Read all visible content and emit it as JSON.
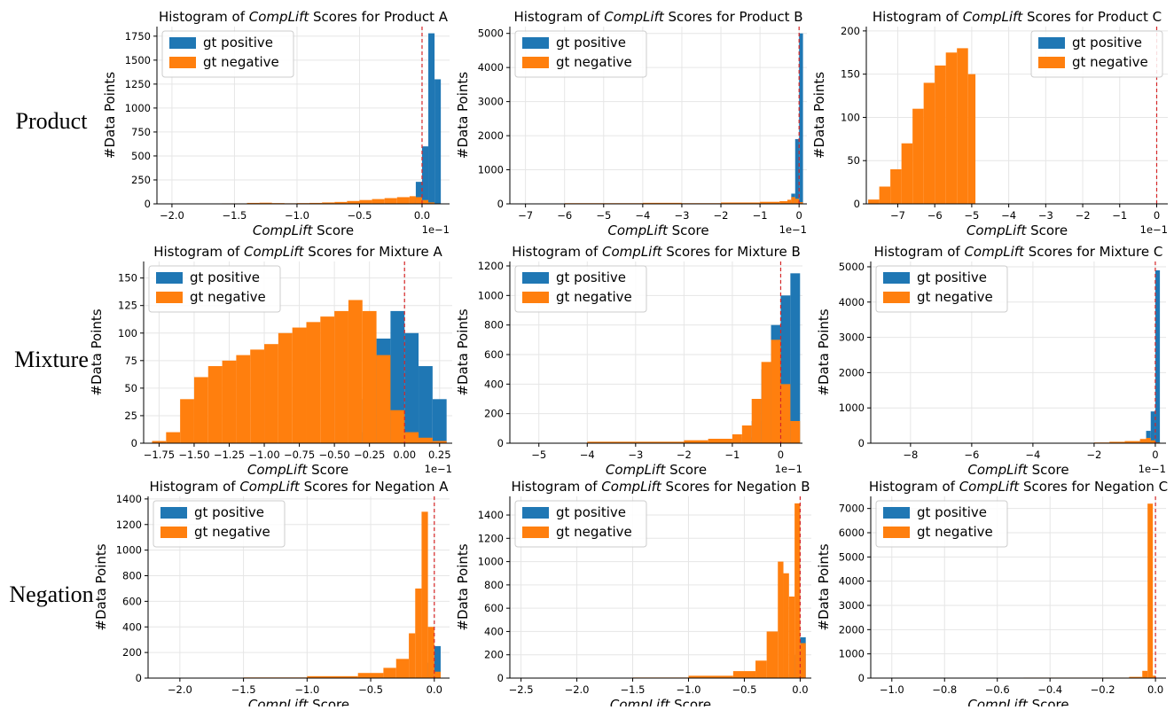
{
  "colors": {
    "gt_positive": "#1f77b4",
    "gt_negative": "#ff7f0e",
    "threshold": "#d62728"
  },
  "row_labels": [
    "Product",
    "Mixture",
    "Negation"
  ],
  "chart_data": [
    {
      "id": "pa",
      "type": "histogram",
      "title_prefix": "Histogram of ",
      "title_italic": "CompLift",
      "title_suffix": " Scores for Product A",
      "xlabel_italic": "CompLift",
      "xlabel_rest": " Score",
      "ylabel": "#Data Points",
      "sci_label": "1e−1",
      "xlim": [
        -2.12,
        0.22
      ],
      "ylim": [
        0,
        1850
      ],
      "x_ticks": [
        {
          "v": -2.0,
          "t": "−2.0"
        },
        {
          "v": -1.5,
          "t": "−1.5"
        },
        {
          "v": -1.0,
          "t": "−1.0"
        },
        {
          "v": -0.5,
          "t": "−0.5"
        },
        {
          "v": 0,
          "t": "0.0"
        }
      ],
      "y_ticks": [
        {
          "v": 0,
          "t": "0"
        },
        {
          "v": 250,
          "t": "250"
        },
        {
          "v": 500,
          "t": "500"
        },
        {
          "v": 750,
          "t": "750"
        },
        {
          "v": 1000,
          "t": "1000"
        },
        {
          "v": 1250,
          "t": "1250"
        },
        {
          "v": 1500,
          "t": "1500"
        },
        {
          "v": 1750,
          "t": "1750"
        }
      ],
      "threshold_x": 0,
      "legend": {
        "position": "upper-left",
        "entries": [
          "gt positive",
          "gt negative"
        ]
      },
      "bins": [
        -1.6,
        -1.4,
        -1.3,
        -1.2,
        -1.1,
        -1.0,
        -0.9,
        -0.8,
        -0.7,
        -0.6,
        -0.5,
        -0.4,
        -0.3,
        -0.2,
        -0.1,
        -0.05,
        0,
        0.05,
        0.1,
        0.15
      ],
      "series": [
        {
          "name": "gt negative",
          "values": [
            5,
            10,
            12,
            8,
            6,
            8,
            10,
            15,
            20,
            30,
            40,
            50,
            60,
            70,
            80,
            70,
            40,
            15,
            5
          ]
        },
        {
          "name": "gt positive",
          "values": [
            0,
            0,
            0,
            0,
            0,
            0,
            0,
            0,
            0,
            0,
            0,
            0,
            0,
            0,
            60,
            230,
            600,
            1780,
            1300
          ]
        }
      ]
    },
    {
      "id": "pb",
      "type": "histogram",
      "title_prefix": "Histogram of ",
      "title_italic": "CompLift",
      "title_suffix": " Scores for Product B",
      "xlabel_italic": "CompLift",
      "xlabel_rest": " Score",
      "ylabel": "#Data Points",
      "sci_label": "1e−1",
      "xlim": [
        -7.4,
        0.2
      ],
      "ylim": [
        0,
        5200
      ],
      "x_ticks": [
        {
          "v": -7,
          "t": "−7"
        },
        {
          "v": -6,
          "t": "−6"
        },
        {
          "v": -5,
          "t": "−5"
        },
        {
          "v": -4,
          "t": "−4"
        },
        {
          "v": -3,
          "t": "−3"
        },
        {
          "v": -2,
          "t": "−2"
        },
        {
          "v": -1,
          "t": "−1"
        },
        {
          "v": 0,
          "t": "0"
        }
      ],
      "y_ticks": [
        {
          "v": 0,
          "t": "0"
        },
        {
          "v": 1000,
          "t": "1000"
        },
        {
          "v": 2000,
          "t": "2000"
        },
        {
          "v": 3000,
          "t": "3000"
        },
        {
          "v": 4000,
          "t": "4000"
        },
        {
          "v": 5000,
          "t": "5000"
        }
      ],
      "threshold_x": 0,
      "legend": {
        "position": "upper-left",
        "entries": [
          "gt positive",
          "gt negative"
        ]
      },
      "bins": [
        -6,
        -5,
        -4,
        -3,
        -2,
        -1,
        -0.5,
        -0.3,
        -0.2,
        -0.1,
        0,
        0.1
      ],
      "series": [
        {
          "name": "gt negative",
          "values": [
            20,
            20,
            30,
            20,
            40,
            60,
            80,
            120,
            200,
            150,
            50
          ]
        },
        {
          "name": "gt positive",
          "values": [
            0,
            0,
            0,
            0,
            0,
            0,
            0,
            60,
            300,
            1900,
            5000
          ]
        }
      ]
    },
    {
      "id": "pc",
      "type": "histogram",
      "title_prefix": "Histogram of ",
      "title_italic": "CompLift",
      "title_suffix": " Scores for Product C",
      "xlabel_italic": "CompLift",
      "xlabel_rest": " Score",
      "ylabel": "#Data Points",
      "sci_label": "1e−1",
      "xlim": [
        -7.85,
        0.3
      ],
      "ylim": [
        0,
        205
      ],
      "x_ticks": [
        {
          "v": -7,
          "t": "−7"
        },
        {
          "v": -6,
          "t": "−6"
        },
        {
          "v": -5,
          "t": "−5"
        },
        {
          "v": -4,
          "t": "−4"
        },
        {
          "v": -3,
          "t": "−3"
        },
        {
          "v": -2,
          "t": "−2"
        },
        {
          "v": -1,
          "t": "−1"
        },
        {
          "v": 0,
          "t": "0"
        }
      ],
      "y_ticks": [
        {
          "v": 0,
          "t": "0"
        },
        {
          "v": 50,
          "t": "50"
        },
        {
          "v": 100,
          "t": "100"
        },
        {
          "v": 150,
          "t": "150"
        },
        {
          "v": 200,
          "t": "200"
        }
      ],
      "threshold_x": 0,
      "legend": {
        "position": "upper-right",
        "entries": [
          "gt positive",
          "gt negative"
        ]
      },
      "bins": [
        -7.8,
        -7.5,
        -7.2,
        -6.9,
        -6.6,
        -6.3,
        -6.0,
        -5.7,
        -5.4,
        -5.1,
        -4.9
      ],
      "series": [
        {
          "name": "gt negative",
          "values": [
            5,
            20,
            40,
            70,
            110,
            140,
            160,
            175,
            180,
            150
          ]
        }
      ]
    },
    {
      "id": "ma",
      "type": "histogram",
      "title_prefix": "Histogram of ",
      "title_italic": "CompLift",
      "title_suffix": " Scores for Mixture A",
      "xlabel_italic": "CompLift",
      "xlabel_rest": " Score",
      "ylabel": "#Data Points",
      "sci_label": "1e−1",
      "xlim": [
        -1.86,
        0.34
      ],
      "ylim": [
        0,
        165
      ],
      "x_ticks": [
        {
          "v": -1.75,
          "t": "−1.75"
        },
        {
          "v": -1.5,
          "t": "−1.50"
        },
        {
          "v": -1.25,
          "t": "−1.25"
        },
        {
          "v": -1.0,
          "t": "−1.00"
        },
        {
          "v": -0.75,
          "t": "−0.75"
        },
        {
          "v": -0.5,
          "t": "−0.50"
        },
        {
          "v": -0.25,
          "t": "−0.25"
        },
        {
          "v": 0,
          "t": "0.00"
        },
        {
          "v": 0.25,
          "t": "0.25"
        }
      ],
      "y_ticks": [
        {
          "v": 0,
          "t": "0"
        },
        {
          "v": 25,
          "t": "25"
        },
        {
          "v": 50,
          "t": "50"
        },
        {
          "v": 75,
          "t": "75"
        },
        {
          "v": 100,
          "t": "100"
        },
        {
          "v": 125,
          "t": "125"
        },
        {
          "v": 150,
          "t": "150"
        }
      ],
      "threshold_x": 0,
      "legend": {
        "position": "upper-left",
        "entries": [
          "gt positive",
          "gt negative"
        ]
      },
      "bins": [
        -1.8,
        -1.7,
        -1.6,
        -1.5,
        -1.4,
        -1.3,
        -1.2,
        -1.1,
        -1.0,
        -0.9,
        -0.8,
        -0.7,
        -0.6,
        -0.5,
        -0.4,
        -0.3,
        -0.2,
        -0.1,
        0,
        0.1,
        0.2,
        0.3
      ],
      "series": [
        {
          "name": "gt negative",
          "values": [
            2,
            10,
            40,
            60,
            70,
            75,
            80,
            85,
            90,
            100,
            105,
            110,
            115,
            120,
            130,
            120,
            80,
            30,
            10,
            5,
            2
          ]
        },
        {
          "name": "gt positive",
          "values": [
            0,
            0,
            0,
            0,
            0,
            0,
            0,
            0,
            0,
            0,
            0,
            0,
            0,
            0,
            10,
            40,
            95,
            120,
            100,
            70,
            40
          ]
        }
      ]
    },
    {
      "id": "mb",
      "type": "histogram",
      "title_prefix": "Histogram of ",
      "title_italic": "CompLift",
      "title_suffix": " Scores for Mixture B",
      "xlabel_italic": "CompLift",
      "xlabel_rest": " Score",
      "ylabel": "#Data Points",
      "sci_label": "1e−1",
      "xlim": [
        -5.6,
        0.45
      ],
      "ylim": [
        0,
        1230
      ],
      "x_ticks": [
        {
          "v": -5,
          "t": "−5"
        },
        {
          "v": -4,
          "t": "−4"
        },
        {
          "v": -3,
          "t": "−3"
        },
        {
          "v": -2,
          "t": "−2"
        },
        {
          "v": -1,
          "t": "−1"
        },
        {
          "v": 0,
          "t": "0"
        }
      ],
      "y_ticks": [
        {
          "v": 0,
          "t": "0"
        },
        {
          "v": 200,
          "t": "200"
        },
        {
          "v": 400,
          "t": "400"
        },
        {
          "v": 600,
          "t": "600"
        },
        {
          "v": 800,
          "t": "800"
        },
        {
          "v": 1000,
          "t": "1000"
        },
        {
          "v": 1200,
          "t": "1200"
        }
      ],
      "threshold_x": 0,
      "legend": {
        "position": "upper-left",
        "entries": [
          "gt positive",
          "gt negative"
        ]
      },
      "bins": [
        -4,
        -3,
        -2,
        -1.5,
        -1,
        -0.8,
        -0.6,
        -0.4,
        -0.2,
        0,
        0.2,
        0.4
      ],
      "series": [
        {
          "name": "gt negative",
          "values": [
            10,
            10,
            20,
            30,
            60,
            120,
            300,
            550,
            700,
            400,
            150
          ]
        },
        {
          "name": "gt positive",
          "values": [
            0,
            0,
            0,
            0,
            10,
            40,
            150,
            500,
            800,
            1000,
            1150
          ]
        }
      ]
    },
    {
      "id": "mc",
      "type": "histogram",
      "title_prefix": "Histogram of ",
      "title_italic": "CompLift",
      "title_suffix": " Scores for Mixture C",
      "xlabel_italic": "CompLift",
      "xlabel_rest": " Score",
      "ylabel": "#Data Points",
      "sci_label": "1e−1",
      "xlim": [
        -9.3,
        0.35
      ],
      "ylim": [
        0,
        5150
      ],
      "x_ticks": [
        {
          "v": -8,
          "t": "−8"
        },
        {
          "v": -6,
          "t": "−6"
        },
        {
          "v": -4,
          "t": "−4"
        },
        {
          "v": -2,
          "t": "−2"
        },
        {
          "v": 0,
          "t": "0"
        }
      ],
      "y_ticks": [
        {
          "v": 0,
          "t": "0"
        },
        {
          "v": 1000,
          "t": "1000"
        },
        {
          "v": 2000,
          "t": "2000"
        },
        {
          "v": 3000,
          "t": "3000"
        },
        {
          "v": 4000,
          "t": "4000"
        },
        {
          "v": 5000,
          "t": "5000"
        }
      ],
      "threshold_x": 0,
      "legend": {
        "position": "upper-left",
        "entries": [
          "gt positive",
          "gt negative"
        ]
      },
      "bins": [
        -2,
        -1.5,
        -1,
        -0.5,
        -0.3,
        -0.15,
        0,
        0.15
      ],
      "series": [
        {
          "name": "gt negative",
          "values": [
            20,
            40,
            60,
            120,
            150,
            80,
            20
          ]
        },
        {
          "name": "gt positive",
          "values": [
            0,
            0,
            20,
            80,
            350,
            900,
            4900
          ]
        }
      ]
    },
    {
      "id": "na",
      "type": "histogram",
      "title_prefix": "Histogram of ",
      "title_italic": "CompLift",
      "title_suffix": " Scores for Negation A",
      "xlabel_italic": "CompLift",
      "xlabel_rest": " Score",
      "ylabel": "#Data Points",
      "sci_label": "",
      "xlim": [
        -2.25,
        0.12
      ],
      "ylim": [
        0,
        1420
      ],
      "x_ticks": [
        {
          "v": -2.0,
          "t": "−2.0"
        },
        {
          "v": -1.5,
          "t": "−1.5"
        },
        {
          "v": -1.0,
          "t": "−1.0"
        },
        {
          "v": -0.5,
          "t": "−0.5"
        },
        {
          "v": 0,
          "t": "0.0"
        }
      ],
      "y_ticks": [
        {
          "v": 0,
          "t": "0"
        },
        {
          "v": 200,
          "t": "200"
        },
        {
          "v": 400,
          "t": "400"
        },
        {
          "v": 600,
          "t": "600"
        },
        {
          "v": 800,
          "t": "800"
        },
        {
          "v": 1000,
          "t": "1000"
        },
        {
          "v": 1200,
          "t": "1200"
        },
        {
          "v": 1400,
          "t": "1400"
        }
      ],
      "threshold_x": 0,
      "legend": {
        "position": "upper-left",
        "entries": [
          "gt positive",
          "gt negative"
        ]
      },
      "bins": [
        -2.2,
        -1.5,
        -1.0,
        -0.6,
        -0.4,
        -0.3,
        -0.2,
        -0.15,
        -0.1,
        -0.05,
        0,
        0.05
      ],
      "series": [
        {
          "name": "gt negative",
          "values": [
            2,
            5,
            15,
            40,
            80,
            150,
            350,
            700,
            1300,
            400,
            50
          ]
        },
        {
          "name": "gt positive",
          "values": [
            0,
            0,
            0,
            0,
            0,
            0,
            0,
            0,
            20,
            120,
            250
          ]
        }
      ]
    },
    {
      "id": "nb",
      "type": "histogram",
      "title_prefix": "Histogram of ",
      "title_italic": "CompLift",
      "title_suffix": " Scores for Negation B",
      "xlabel_italic": "CompLift",
      "xlabel_rest": " Score",
      "ylabel": "#Data Points",
      "sci_label": "",
      "xlim": [
        -2.6,
        0.1
      ],
      "ylim": [
        0,
        1560
      ],
      "x_ticks": [
        {
          "v": -2.5,
          "t": "−2.5"
        },
        {
          "v": -2.0,
          "t": "−2.0"
        },
        {
          "v": -1.5,
          "t": "−1.5"
        },
        {
          "v": -1.0,
          "t": "−1.0"
        },
        {
          "v": -0.5,
          "t": "−0.5"
        },
        {
          "v": 0,
          "t": "0.0"
        }
      ],
      "y_ticks": [
        {
          "v": 0,
          "t": "0"
        },
        {
          "v": 200,
          "t": "200"
        },
        {
          "v": 400,
          "t": "400"
        },
        {
          "v": 600,
          "t": "600"
        },
        {
          "v": 800,
          "t": "800"
        },
        {
          "v": 1000,
          "t": "1000"
        },
        {
          "v": 1200,
          "t": "1200"
        },
        {
          "v": 1400,
          "t": "1400"
        }
      ],
      "threshold_x": 0,
      "legend": {
        "position": "upper-left",
        "entries": [
          "gt positive",
          "gt negative"
        ]
      },
      "bins": [
        -2.5,
        -1.5,
        -1.0,
        -0.6,
        -0.4,
        -0.3,
        -0.2,
        -0.15,
        -0.1,
        -0.05,
        0,
        0.05
      ],
      "series": [
        {
          "name": "gt negative",
          "values": [
            2,
            5,
            20,
            60,
            150,
            400,
            1000,
            900,
            700,
            1500,
            300
          ]
        },
        {
          "name": "gt positive",
          "values": [
            0,
            0,
            0,
            0,
            0,
            0,
            0,
            0,
            30,
            200,
            350
          ]
        }
      ]
    },
    {
      "id": "nc",
      "type": "histogram",
      "title_prefix": "Histogram of ",
      "title_italic": "CompLift",
      "title_suffix": " Scores for Negation C",
      "xlabel_italic": "CompLift",
      "xlabel_rest": " Score",
      "ylabel": "#Data Points",
      "sci_label": "",
      "xlim": [
        -1.08,
        0.04
      ],
      "ylim": [
        0,
        7500
      ],
      "x_ticks": [
        {
          "v": -1.0,
          "t": "−1.0"
        },
        {
          "v": -0.8,
          "t": "−0.8"
        },
        {
          "v": -0.6,
          "t": "−0.6"
        },
        {
          "v": -0.4,
          "t": "−0.4"
        },
        {
          "v": -0.2,
          "t": "−0.2"
        },
        {
          "v": 0,
          "t": "0.0"
        }
      ],
      "y_ticks": [
        {
          "v": 0,
          "t": "0"
        },
        {
          "v": 1000,
          "t": "1000"
        },
        {
          "v": 2000,
          "t": "2000"
        },
        {
          "v": 3000,
          "t": "3000"
        },
        {
          "v": 4000,
          "t": "4000"
        },
        {
          "v": 5000,
          "t": "5000"
        },
        {
          "v": 6000,
          "t": "6000"
        },
        {
          "v": 7000,
          "t": "7000"
        }
      ],
      "threshold_x": 0,
      "legend": {
        "position": "upper-left",
        "entries": [
          "gt positive",
          "gt negative"
        ]
      },
      "bins": [
        -1.0,
        -0.5,
        -0.1,
        -0.05,
        -0.03,
        -0.01,
        0
      ],
      "series": [
        {
          "name": "gt negative",
          "values": [
            10,
            20,
            50,
            300,
            7200,
            100
          ]
        }
      ]
    }
  ]
}
